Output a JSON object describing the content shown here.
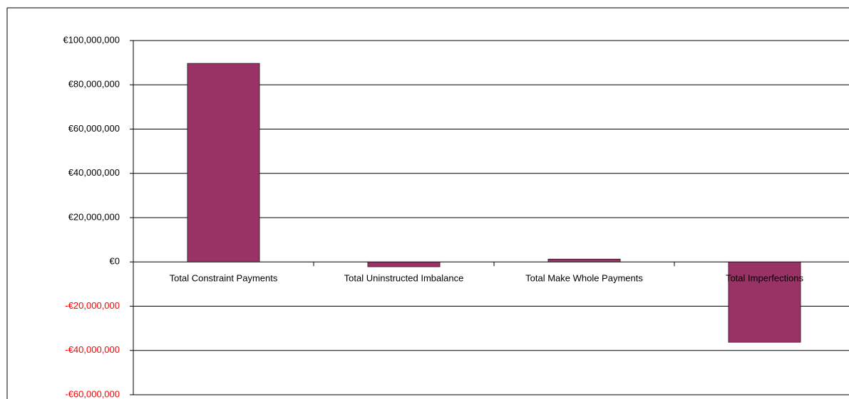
{
  "chart_data": {
    "type": "bar",
    "categories": [
      "Total Constraint Payments",
      "Total Uninstructed Imbalance",
      "Total Make Whole Payments",
      "Total Imperfections"
    ],
    "values": [
      89700000,
      -2200000,
      1300000,
      -36300000
    ],
    "color": "#993366",
    "ylim": [
      -60000000,
      100000000
    ],
    "yticks": [
      {
        "value": -60000000,
        "label": "-€60,000,000"
      },
      {
        "value": -40000000,
        "label": "-€40,000,000"
      },
      {
        "value": -20000000,
        "label": "-€20,000,000"
      },
      {
        "value": 0,
        "label": "€0"
      },
      {
        "value": 20000000,
        "label": "€20,000,000"
      },
      {
        "value": 40000000,
        "label": "€40,000,000"
      },
      {
        "value": 60000000,
        "label": "€60,000,000"
      },
      {
        "value": 80000000,
        "label": "€80,000,000"
      },
      {
        "value": 100000000,
        "label": "€100,000,000"
      }
    ],
    "negative_tick_color": "#ff0000",
    "grid": true
  }
}
